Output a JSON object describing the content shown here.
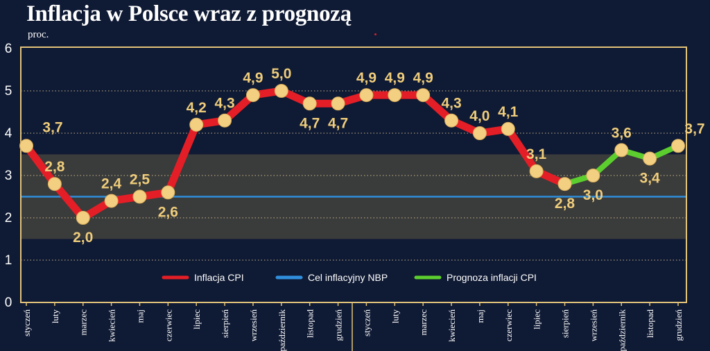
{
  "title": "Inflacja w Polsce wraz z prognozą",
  "unit_label": "proc.",
  "colors": {
    "background": "#0f1a34",
    "frame": "#e4c47a",
    "band": "#3f3f3c",
    "actual": "#e41e26",
    "forecast": "#5ccf2f",
    "target": "#2f8fdc",
    "point": "#f3cf82",
    "label": "#efcd7b",
    "axis_text": "#ffffff"
  },
  "chart_data": {
    "type": "line",
    "title": "Inflacja w Polsce wraz z prognozą",
    "ylabel": "proc.",
    "xlabel": "",
    "ylim": [
      0,
      6
    ],
    "yticks": [
      "0",
      "1",
      "2",
      "3",
      "4",
      "5",
      "6"
    ],
    "grid": true,
    "categories": [
      "styczeń",
      "luty",
      "marzec",
      "kwiecień",
      "maj",
      "czerwiec",
      "lipiec",
      "sierpień",
      "wrzesień",
      "październik",
      "listopad",
      "grudzień",
      "styczeń",
      "luty",
      "marzec",
      "kwiecień",
      "maj",
      "czerwiec",
      "lipiec",
      "sierpień",
      "wrzesień",
      "październik",
      "listopad",
      "grudzień"
    ],
    "values": [
      3.7,
      2.8,
      2.0,
      2.4,
      2.5,
      2.6,
      4.2,
      4.3,
      4.9,
      5.0,
      4.7,
      4.7,
      4.9,
      4.9,
      4.9,
      4.3,
      4.0,
      4.1,
      3.1,
      2.8,
      3.0,
      3.6,
      3.4,
      3.7
    ],
    "value_labels": [
      "3,7",
      "2,8",
      "2,0",
      "2,4",
      "2,5",
      "2,6",
      "4,2",
      "4,3",
      "4,9",
      "5,0",
      "4,7",
      "4,7",
      "4,9",
      "4,9",
      "4,9",
      "4,3",
      "4,0",
      "4,1",
      "3,1",
      "2,8",
      "3,0",
      "3,6",
      "3,4",
      "3,7"
    ],
    "forecast_start_index": 19,
    "target_value": 2.5,
    "tolerance_band": [
      1.5,
      3.5
    ],
    "legend": {
      "placement": "bottom-center",
      "items": [
        {
          "label": "Inflacja CPI",
          "color": "#e41e26"
        },
        {
          "label": "Cel inflacyjny NBP",
          "color": "#2f8fdc"
        },
        {
          "label": "Prognoza inflacji CPI",
          "color": "#5ccf2f"
        }
      ]
    }
  }
}
